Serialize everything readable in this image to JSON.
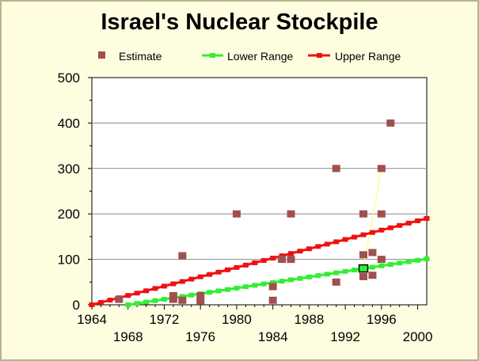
{
  "chart_data": {
    "type": "scatter",
    "title": "Israel's Nuclear Stockpile",
    "xlabel": "",
    "ylabel": "",
    "xlim": [
      1964,
      2001
    ],
    "ylim": [
      0,
      500
    ],
    "x_ticks_upper": [
      "1964",
      "1972",
      "1980",
      "1988",
      "1996"
    ],
    "x_ticks_lower": [
      "1968",
      "1976",
      "1984",
      "1992",
      "2000"
    ],
    "y_ticks": [
      "0",
      "100",
      "200",
      "300",
      "400",
      "500"
    ],
    "grid": "horizontal",
    "legend": "top",
    "series": [
      {
        "name": "Estimate",
        "kind": "scatter",
        "color": "#a0504f",
        "points": [
          [
            1967,
            12
          ],
          [
            1973,
            12
          ],
          [
            1973,
            20
          ],
          [
            1974,
            10
          ],
          [
            1974,
            108
          ],
          [
            1976,
            8
          ],
          [
            1976,
            20
          ],
          [
            1980,
            200
          ],
          [
            1984,
            10
          ],
          [
            1984,
            40
          ],
          [
            1985,
            100
          ],
          [
            1986,
            100
          ],
          [
            1986,
            200
          ],
          [
            1991,
            50
          ],
          [
            1991,
            300
          ],
          [
            1994,
            62
          ],
          [
            1994,
            110
          ],
          [
            1994,
            200
          ],
          [
            1995,
            65
          ],
          [
            1995,
            115
          ],
          [
            1996,
            100
          ],
          [
            1996,
            200
          ],
          [
            1996,
            300
          ],
          [
            1997,
            400
          ]
        ]
      },
      {
        "name": "Lower Range",
        "kind": "line",
        "color": "#33ee33",
        "x_start": 1968,
        "x_end": 2001,
        "y_start": 0,
        "y_end": 101
      },
      {
        "name": "Upper Range",
        "kind": "line",
        "color": "#ee1111",
        "x_start": 1964,
        "x_end": 2001,
        "y_start": 0,
        "y_end": 190
      }
    ],
    "annotations": {
      "highlight": {
        "x": 1994,
        "y": 80,
        "color": "#33ee33"
      },
      "connector_color": "#ffff88",
      "connector_points": [
        [
          1994,
          80
        ],
        [
          1996,
          300
        ]
      ]
    }
  }
}
